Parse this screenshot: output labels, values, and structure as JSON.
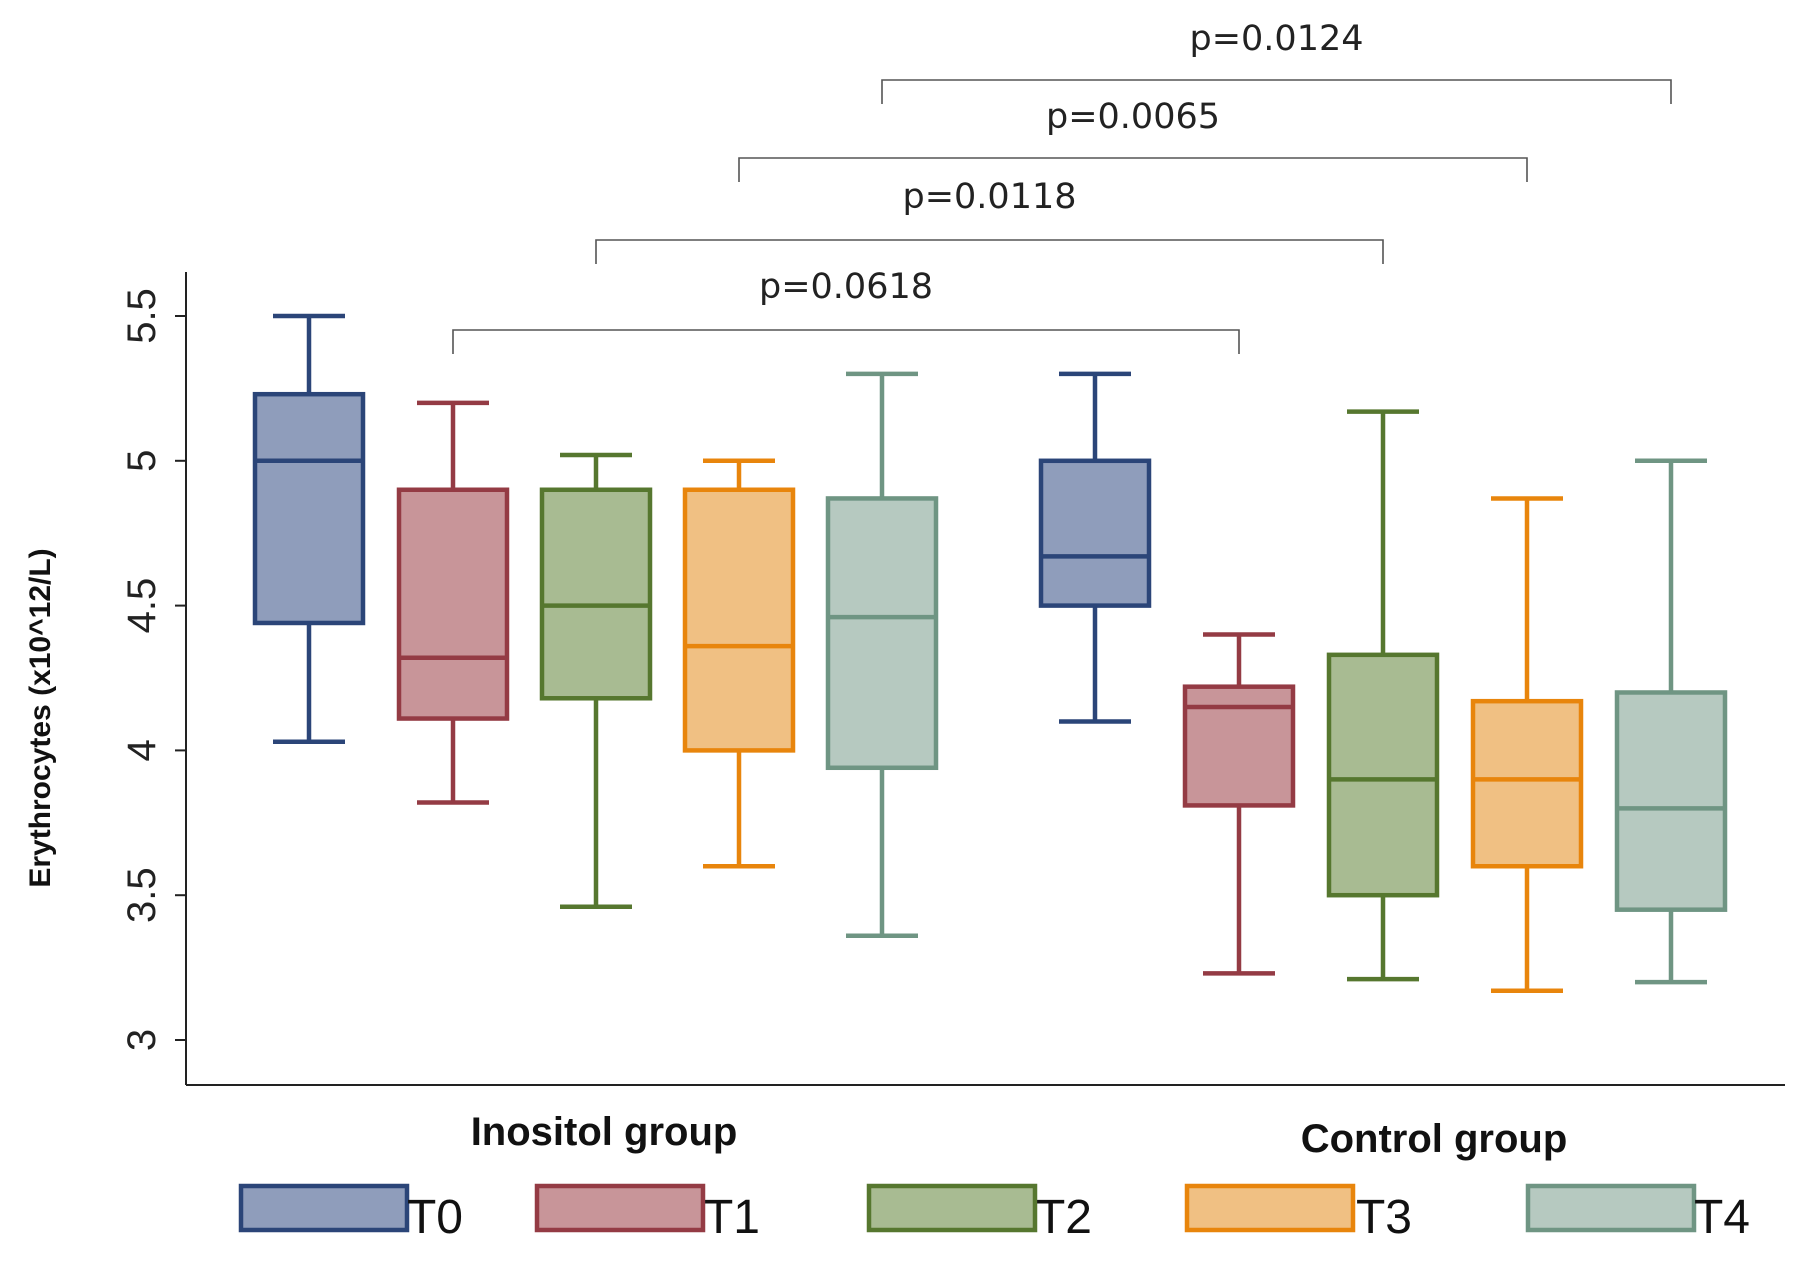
{
  "chart_data": {
    "type": "boxplot",
    "ylabel": "Erythrocytes  (x10^12/L)",
    "ylim": [
      2.85,
      5.65
    ],
    "yticks": [
      3,
      3.5,
      4,
      4.5,
      5,
      5.5
    ],
    "ytick_labels": [
      "3",
      "3.5",
      "4",
      "4.5",
      "5",
      "5.5"
    ],
    "groups": [
      {
        "name": "Inositol group",
        "boxes": [
          {
            "series": "T0",
            "min": 4.03,
            "q1": 4.44,
            "median": 5.0,
            "q3": 5.23,
            "max": 5.5
          },
          {
            "series": "T1",
            "min": 3.82,
            "q1": 4.11,
            "median": 4.32,
            "q3": 4.9,
            "max": 5.2
          },
          {
            "series": "T2",
            "min": 3.46,
            "q1": 4.18,
            "median": 4.5,
            "q3": 4.9,
            "max": 5.02
          },
          {
            "series": "T3",
            "min": 3.6,
            "q1": 4.0,
            "median": 4.36,
            "q3": 4.9,
            "max": 5.0
          },
          {
            "series": "T4",
            "min": 3.36,
            "q1": 3.94,
            "median": 4.46,
            "q3": 4.87,
            "max": 5.3
          }
        ]
      },
      {
        "name": "Control group",
        "boxes": [
          {
            "series": "T0",
            "min": 4.1,
            "q1": 4.5,
            "median": 4.67,
            "q3": 5.0,
            "max": 5.3
          },
          {
            "series": "T1",
            "min": 3.23,
            "q1": 3.81,
            "median": 4.15,
            "q3": 4.22,
            "max": 4.4
          },
          {
            "series": "T2",
            "min": 3.21,
            "q1": 3.5,
            "median": 3.9,
            "q3": 4.33,
            "max": 5.17
          },
          {
            "series": "T3",
            "min": 3.17,
            "q1": 3.6,
            "median": 3.9,
            "q3": 4.17,
            "max": 4.87
          },
          {
            "series": "T4",
            "min": 3.2,
            "q1": 3.45,
            "median": 3.8,
            "q3": 4.2,
            "max": 5.0
          }
        ]
      }
    ],
    "series": [
      {
        "name": "T0",
        "stroke": "#2b4578",
        "fill": "#8f9dbb"
      },
      {
        "name": "T1",
        "stroke": "#943b44",
        "fill": "#c89599"
      },
      {
        "name": "T2",
        "stroke": "#56772f",
        "fill": "#a8bb92"
      },
      {
        "name": "T3",
        "stroke": "#e8850c",
        "fill": "#f0c083"
      },
      {
        "name": "T4",
        "stroke": "#6f9583",
        "fill": "#b6c9c0"
      }
    ],
    "comparisons": [
      {
        "label": "p=0.0618",
        "from": {
          "group": 0,
          "box": 1
        },
        "to": {
          "group": 1,
          "box": 1
        }
      },
      {
        "label": "p=0.0118",
        "from": {
          "group": 0,
          "box": 2
        },
        "to": {
          "group": 1,
          "box": 2
        }
      },
      {
        "label": "p=0.0065",
        "from": {
          "group": 0,
          "box": 3
        },
        "to": {
          "group": 1,
          "box": 3
        }
      },
      {
        "label": "p=0.0124",
        "from": {
          "group": 0,
          "box": 4
        },
        "to": {
          "group": 1,
          "box": 4
        }
      }
    ],
    "legend_position": "bottom"
  }
}
